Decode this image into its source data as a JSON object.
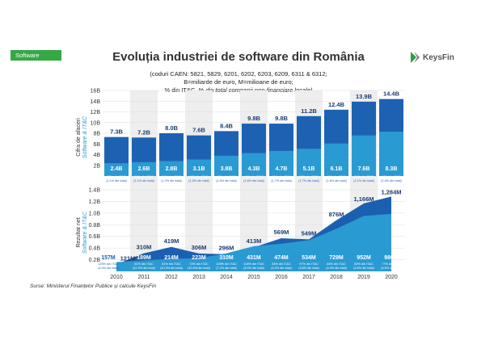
{
  "header": {
    "tag": "Software",
    "title": "Evoluția industriei de software din România",
    "subtitle_line1": "(coduri CAEN: 5821, 5829, 6201, 6202, 6203, 6209, 6311 & 6312;",
    "subtitle_line2": "B=miliarde de euro, M=milioane de euro;",
    "subtitle_line3a": "% din IT&C, % ",
    "subtitle_line3b": "din total companii non-financiare locale)",
    "logo_text": "KeysFin"
  },
  "footer": {
    "source": "Surse: Ministerul Finanțelor Publice și calcule KeysFin"
  },
  "colors": {
    "total": "#1d62b2",
    "software": "#2a9ad3",
    "alt_band": "#eeeeee",
    "profit_area": "#1b60b0",
    "tag": "#35a944"
  },
  "chart_data": [
    {
      "type": "bar",
      "ylabel_line1": "Cifra de afaceri",
      "ylabel_line2": "Software & IT&C",
      "yticks": [
        "2B",
        "4B",
        "6B",
        "8B",
        "10B",
        "12B",
        "14B",
        "16B"
      ],
      "ylim": [
        0,
        16
      ],
      "categories": [
        "2010",
        "2011",
        "2012",
        "2013",
        "2014",
        "2015",
        "2016",
        "2017",
        "2018",
        "2019",
        "2020"
      ],
      "series": [
        {
          "values": [
            7.3,
            7.2,
            8.0,
            7.6,
            8.4,
            9.8,
            9.8,
            11.2,
            12.4,
            13.9,
            14.4
          ],
          "labels": [
            "7.3B",
            "7.2B",
            "8.0B",
            "7.6B",
            "8.4B",
            "9.8B",
            "9.8B",
            "11.2B",
            "12.4B",
            "13.9B",
            "14.4B"
          ]
        },
        {
          "values": [
            2.4,
            2.6,
            2.8,
            3.1,
            3.8,
            4.3,
            4.7,
            5.1,
            6.1,
            7.6,
            8.3
          ],
          "labels": [
            "2.4B",
            "2.6B",
            "2.8B",
            "3.1B",
            "3.8B",
            "4.3B",
            "4.7B",
            "5.1B",
            "6.1B",
            "7.6B",
            "8.3B"
          ],
          "pct_itc": [
            "32% din IT&C",
            "36% din IT&C",
            "36% din IT&C",
            "40% din IT&C",
            "45% din IT&C",
            "44% din IT&C",
            "48% din IT&C",
            "46% din IT&C",
            "49% din IT&C",
            "54% din IT&C",
            "57% din IT&C"
          ],
          "pct_total": [
            "(1.1% din total)",
            "(1.1% din total)",
            "(1.2% din total)",
            "(1.3% din total)",
            "(1.5% din total)",
            "(1.6% din total)",
            "(1.7% din total)",
            "(1.7% din total)",
            "(1.8% din total)",
            "(2.1% din total)",
            "(2.4% din total)"
          ]
        }
      ]
    },
    {
      "type": "area",
      "ylabel_line1": "Rezultat net",
      "ylabel_line2": "Software & IT&C",
      "yticks": [
        "0.2B",
        "0.4B",
        "0.6B",
        "0.8B",
        "1.0B",
        "1.2B",
        "1.4B"
      ],
      "ylim": [
        0,
        1.4
      ],
      "categories": [
        "2010",
        "2011",
        "2012",
        "2013",
        "2014",
        "2015",
        "2016",
        "2017",
        "2018",
        "2019",
        "2020"
      ],
      "series": [
        {
          "values": [
            121,
            310,
            419,
            306,
            296,
            413,
            569,
            549,
            876,
            1166,
            1284
          ],
          "labels": [
            "121M",
            "310M",
            "419M",
            "306M",
            "296M",
            "413M",
            "569M",
            "549M",
            "876M",
            "1,166M",
            "1,284M"
          ]
        },
        {
          "values": [
            157,
            189,
            214,
            223,
            310,
            431,
            474,
            534,
            729,
            952,
            986
          ],
          "labels": [
            "157M",
            "189M",
            "214M",
            "223M",
            "310M",
            "431M",
            "474M",
            "534M",
            "729M",
            "952M",
            "986M"
          ],
          "pct_itc": [
            "129% din IT&C",
            "61% din IT&C",
            "51% din IT&C",
            "73% din IT&C",
            "105% din IT&C",
            "104% din IT&C",
            "83% din IT&C",
            "97% din IT&C",
            "83% din IT&C",
            "82% din IT&C",
            "77% din IT&C"
          ],
          "pct_total": [
            "(4.4% din total)",
            "(12.9% din total)",
            "(10.4% din total)",
            "(10.6% din total)",
            "(7.2% din total)",
            "(6.0% din total)",
            "(4.2% din total)",
            "(3.6% din total)",
            "(4.4% din total)",
            "(4.6% din total)",
            "(4.6% din total)"
          ]
        }
      ]
    }
  ]
}
